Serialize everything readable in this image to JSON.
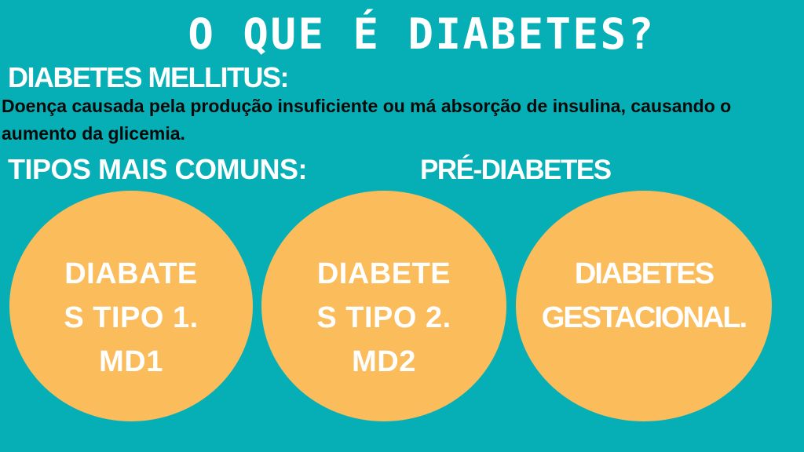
{
  "slide": {
    "title": "O QUE É DIABETES?",
    "mellitus": {
      "heading": "DIABETES MELLITUS:",
      "definition_line1": "Doença causada pela produção insuficiente ou má absorção de insulina, causando o",
      "definition_line2": "aumento da glicemia."
    },
    "types": {
      "heading": "TIPOS MAIS COMUNS:",
      "prediabetes_label": "PRÉ-DIABETES"
    },
    "circles": [
      {
        "lines": [
          "DIABATE",
          "S TIPO 1.",
          "MD1"
        ]
      },
      {
        "lines": [
          "DIABETE",
          "S TIPO 2.",
          "MD2"
        ]
      },
      {
        "lines": [
          "DIABETES",
          "GESTACIONAL."
        ]
      }
    ],
    "colors": {
      "background": "#06AEB6",
      "circle_fill": "#FBBC5C",
      "text_light": "#FFFFFF",
      "text_dark": "#0A0A0A"
    }
  }
}
